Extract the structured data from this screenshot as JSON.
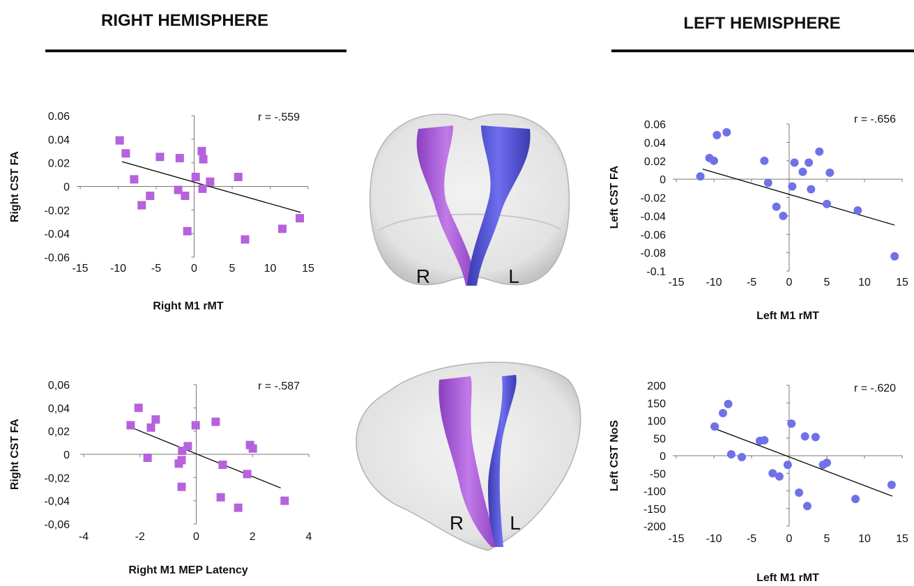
{
  "headers": [
    "RIGHT HEMISPHERE",
    "LEFT HEMISPHERE"
  ],
  "brain_images": [
    {
      "left_label": "R",
      "right_label": "L"
    },
    {
      "left_label": "R",
      "right_label": "L"
    }
  ],
  "chart_data": [
    {
      "type": "scatter",
      "x_label": "Right M1 rMT",
      "y_label": "Right CST FA",
      "annotation": "r = -.559",
      "marker": "square",
      "color": "#b562dc",
      "x": [
        -9.8,
        -9.0,
        -7.9,
        -6.9,
        -5.8,
        -4.5,
        -1.9,
        -2.1,
        -1.2,
        -0.9,
        0.2,
        1.0,
        1.2,
        1.1,
        2.1,
        5.8,
        6.7,
        11.6,
        13.9
      ],
      "y": [
        0.039,
        0.028,
        0.006,
        -0.016,
        -0.008,
        0.025,
        0.024,
        -0.003,
        -0.008,
        -0.038,
        0.008,
        0.03,
        0.023,
        -0.002,
        0.004,
        0.008,
        -0.045,
        -0.036,
        -0.027
      ],
      "trendline": {
        "x": [
          -9.5,
          14
        ],
        "y": [
          0.021,
          -0.022
        ]
      },
      "xlim": [
        -15,
        15
      ],
      "xticks": [
        -15,
        -10,
        -5,
        0,
        5,
        10,
        15
      ],
      "ylim": [
        -0.06,
        0.06
      ],
      "yticks": [
        0.06,
        0.04,
        0.02,
        0,
        -0.02,
        -0.04,
        -0.06
      ]
    },
    {
      "type": "scatter",
      "x_label": "Right M1 MEP Latency",
      "y_label": "Right CST FA",
      "annotation": "r = -.587",
      "marker": "square",
      "color": "#b562dc",
      "x": [
        -2.33,
        -2.05,
        -1.61,
        -1.44,
        -1.73,
        -0.02,
        -0.3,
        -0.5,
        -0.52,
        -0.62,
        -0.52,
        0.69,
        0.94,
        0.87,
        1.49,
        1.91,
        2.01,
        1.81,
        3.14
      ],
      "y": [
        0.025,
        0.04,
        0.023,
        0.03,
        -0.003,
        0.025,
        0.007,
        0.003,
        -0.005,
        -0.008,
        -0.028,
        0.028,
        -0.009,
        -0.037,
        -0.046,
        0.008,
        0.005,
        -0.017,
        -0.04
      ],
      "trendline": {
        "x": [
          -2.3,
          3.0
        ],
        "y": [
          0.023,
          -0.029
        ]
      },
      "xlim": [
        -4,
        4
      ],
      "xticks": [
        -4,
        -2,
        0,
        2,
        4
      ],
      "ylim": [
        -0.06,
        0.06
      ],
      "yticks": [
        {
          "value": 0.06,
          "label": "0,06"
        },
        {
          "value": 0.04,
          "label": "0,04"
        },
        {
          "value": 0.02,
          "label": "0,02"
        },
        0,
        {
          "value": -0.02,
          "label": "-0,02"
        },
        {
          "value": -0.04,
          "label": "-0,04"
        },
        {
          "value": -0.06,
          "label": "-0,06"
        }
      ]
    },
    {
      "type": "scatter",
      "x_label": "Left M1 rMT",
      "y_label": "Left CST FA",
      "annotation": "r = -.656",
      "marker": "circle",
      "color": "#6f72e6",
      "x": [
        -11.8,
        -10.6,
        -10.0,
        -9.6,
        -8.3,
        -3.3,
        -2.8,
        -1.7,
        -0.8,
        0.4,
        0.7,
        1.8,
        2.6,
        2.9,
        4.0,
        5.0,
        5.4,
        9.1,
        14.0
      ],
      "y": [
        0.003,
        0.023,
        0.02,
        0.048,
        0.051,
        0.02,
        -0.004,
        -0.03,
        -0.04,
        -0.008,
        0.018,
        0.008,
        0.018,
        -0.011,
        0.03,
        -0.027,
        0.007,
        -0.034,
        -0.084
      ],
      "trendline": {
        "x": [
          -11.5,
          14
        ],
        "y": [
          0.011,
          -0.05
        ]
      },
      "xlim": [
        -15,
        15
      ],
      "xticks": [
        -15,
        -10,
        -5,
        0,
        5,
        10,
        15
      ],
      "ylim": [
        -0.1,
        0.06
      ],
      "yticks": [
        0.06,
        0.04,
        0.02,
        0,
        -0.02,
        -0.04,
        -0.06,
        -0.08,
        -0.1
      ]
    },
    {
      "type": "scatter",
      "x_label": "Left M1 rMT",
      "y_label": "Left CST NoS",
      "annotation": "r = -.620",
      "marker": "circle",
      "color": "#6f72e6",
      "x": [
        -9.9,
        -8.8,
        -8.1,
        -7.7,
        -6.3,
        -3.9,
        -3.3,
        -2.2,
        -1.3,
        -0.2,
        0.3,
        1.3,
        2.1,
        2.4,
        3.5,
        4.5,
        5.0,
        8.8,
        13.6
      ],
      "y": [
        83,
        121,
        147,
        4,
        -4,
        42,
        44,
        -50,
        -59,
        -26,
        91,
        -105,
        55,
        -143,
        53,
        -26,
        -20,
        -123,
        -83
      ],
      "trendline": {
        "x": [
          -9.9,
          13.7
        ],
        "y": [
          77,
          -115
        ]
      },
      "xlim": [
        -15,
        15
      ],
      "xticks": [
        -15,
        -10,
        -5,
        0,
        5,
        10,
        15
      ],
      "ylim": [
        -200,
        200
      ],
      "yticks": [
        200,
        150,
        100,
        50,
        0,
        -50,
        -100,
        -150,
        -200
      ]
    }
  ]
}
